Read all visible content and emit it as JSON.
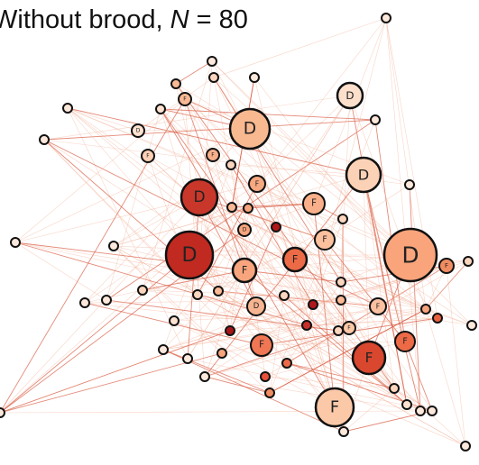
{
  "title": {
    "text": "Without brood, ",
    "symbol": "N",
    "value": " = 80"
  },
  "nodes": [
    {
      "label": "D"
    },
    {
      "label": "D"
    },
    {
      "label": "D"
    },
    {
      "label": "D"
    },
    {
      "label": "D"
    },
    {
      "label": "D"
    },
    {
      "label": "F"
    },
    {
      "label": "F"
    },
    {
      "label": "F"
    },
    {
      "label": "F"
    },
    {
      "label": "F"
    },
    {
      "label": "F"
    },
    {
      "label": "F"
    },
    {
      "label": "F"
    },
    {
      "label": "F"
    },
    {
      "label": "F"
    },
    {
      "label": "D"
    },
    {
      "label": "F"
    },
    {
      "label": "F"
    },
    {
      "label": "F"
    },
    {
      "label": "F"
    },
    {
      "label": "D"
    },
    {
      "label": "D"
    },
    {
      "label": "F"
    }
  ]
}
